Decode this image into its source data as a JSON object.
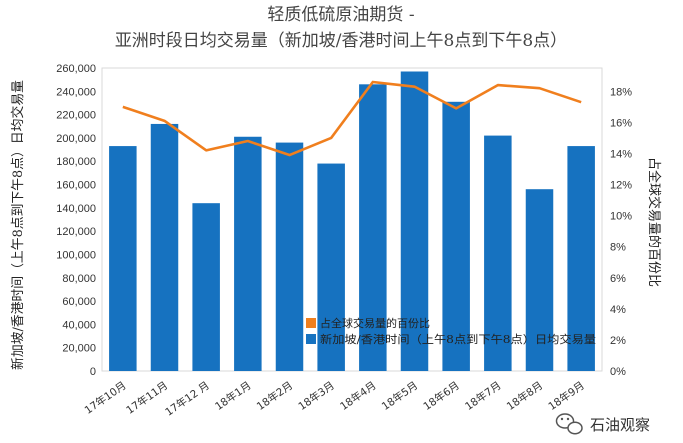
{
  "chart_data": {
    "type": "bar",
    "title": "轻质低硫原油期货 -",
    "subtitle": "亚洲时段日均交易量（新加坡/香港时间上午8点到下午8点）",
    "categories": [
      "17年10月",
      "17年11月",
      "17年12 月",
      "18年1月",
      "18年2月",
      "18年3月",
      "18年4月",
      "18年5月",
      "18年6月",
      "18年7月",
      "18年8月",
      "18年9月"
    ],
    "series": [
      {
        "name": "新加坡/香港时间（上午8点到下午8点）日均交易量",
        "type": "bar",
        "axis": "left",
        "color": "#1672C0",
        "values": [
          193000,
          212000,
          144000,
          201000,
          196000,
          178000,
          246000,
          257000,
          231000,
          202000,
          156000,
          193000
        ]
      },
      {
        "name": "占全球交易量的百份比",
        "type": "line",
        "axis": "right",
        "color": "#F07F1E",
        "values": [
          17.0,
          16.1,
          14.2,
          14.8,
          13.9,
          15.0,
          18.6,
          18.3,
          16.9,
          18.4,
          18.2,
          17.3
        ]
      }
    ],
    "ylabel_left": "新加坡/香港时间（上午8点到下午8点）日均交易量",
    "ylabel_right": "占全球交易量的百份比",
    "ylim_left": [
      0,
      260000
    ],
    "yticks_left": [
      "0",
      "20,000",
      "40,000",
      "60,000",
      "80,000",
      "100,000",
      "120,000",
      "140,000",
      "160,000",
      "180,000",
      "200,000",
      "220,000",
      "240,000",
      "260,000"
    ],
    "ylim_right": [
      0,
      19.5
    ],
    "yticks_right": [
      "0%",
      "2%",
      "4%",
      "6%",
      "8%",
      "10%",
      "12%",
      "14%",
      "16%",
      "18%"
    ],
    "legend_position": "bottom-right inside plot",
    "grid": false
  },
  "watermark": {
    "text": "石油观察",
    "icon": "wechat-icon"
  }
}
